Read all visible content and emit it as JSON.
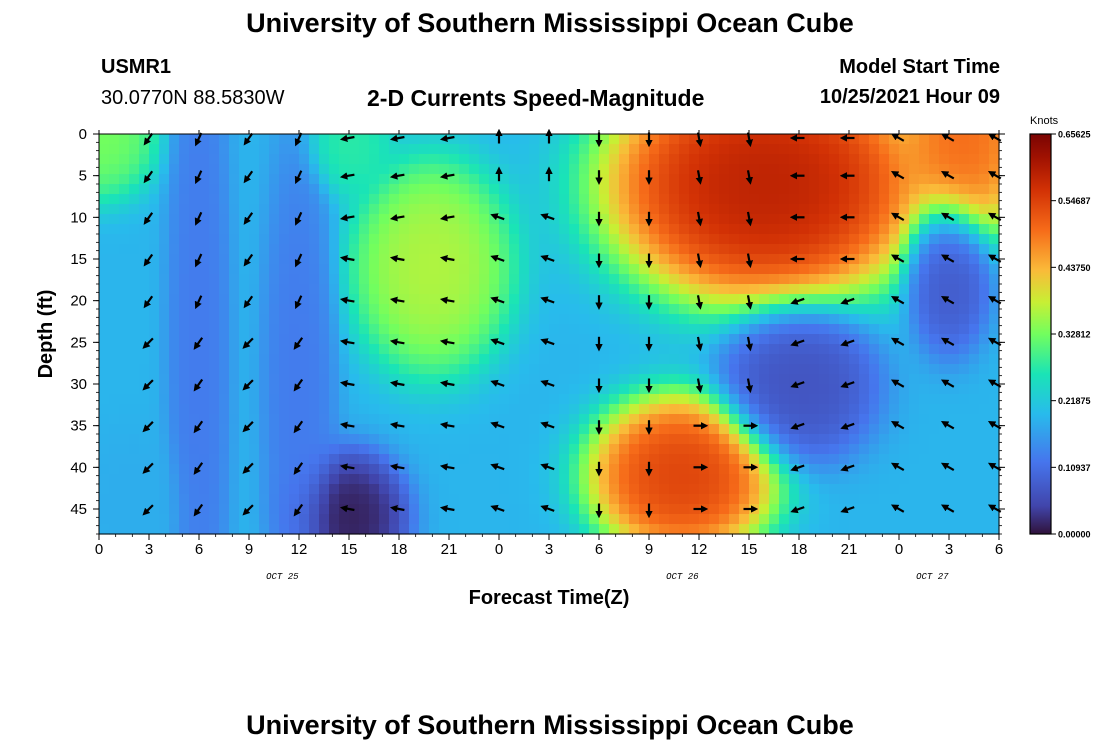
{
  "header": {
    "title": "University of Southern Mississippi Ocean Cube",
    "station": "USMR1",
    "location": "30.0770N  88.5830W",
    "subtitle": "2-D Currents Speed-Magnitude",
    "start_label": "Model Start Time",
    "start_value": "10/25/2021 Hour 09"
  },
  "footer": {
    "title": "University of Southern Mississippi Ocean Cube"
  },
  "chart_data": {
    "type": "heatmap",
    "title": "2-D Currents Speed-Magnitude",
    "xlabel": "Forecast Time(Z)",
    "ylabel": "Depth (ft)",
    "x_range_hours": [
      0,
      54
    ],
    "y_range_ft": [
      0,
      48
    ],
    "x_ticks": [
      {
        "h": 0,
        "label": "0"
      },
      {
        "h": 3,
        "label": "3"
      },
      {
        "h": 6,
        "label": "6"
      },
      {
        "h": 9,
        "label": "9"
      },
      {
        "h": 12,
        "label": "12"
      },
      {
        "h": 15,
        "label": "15"
      },
      {
        "h": 18,
        "label": "18"
      },
      {
        "h": 21,
        "label": "21"
      },
      {
        "h": 24,
        "label": "0"
      },
      {
        "h": 27,
        "label": "3"
      },
      {
        "h": 30,
        "label": "6"
      },
      {
        "h": 33,
        "label": "9"
      },
      {
        "h": 36,
        "label": "12"
      },
      {
        "h": 39,
        "label": "15"
      },
      {
        "h": 42,
        "label": "18"
      },
      {
        "h": 45,
        "label": "21"
      },
      {
        "h": 48,
        "label": "0"
      },
      {
        "h": 51,
        "label": "3"
      },
      {
        "h": 54,
        "label": "6"
      }
    ],
    "y_ticks": [
      0,
      5,
      10,
      15,
      20,
      25,
      30,
      35,
      40,
      45
    ],
    "date_labels": [
      {
        "h": 11,
        "label": "OCT 25"
      },
      {
        "h": 35,
        "label": "OCT 26"
      },
      {
        "h": 50,
        "label": "OCT 27"
      }
    ],
    "colorbar": {
      "unit": "Knots",
      "range": [
        0,
        0.65625
      ],
      "labels": [
        "0.65625",
        "0.54687",
        "0.43750",
        "0.32812",
        "0.21875",
        "0.10937",
        "0.00000"
      ]
    },
    "speed_features": [
      {
        "hour": 52,
        "depth": 0,
        "speed": 0.52,
        "spread_h": 2.4,
        "spread_d": 8
      },
      {
        "hour": 0,
        "depth": 0,
        "speed": 0.34,
        "spread_h": 2.2,
        "spread_d": 5
      },
      {
        "hour": 15,
        "depth": 1,
        "speed": 0.28,
        "spread_h": 1.6,
        "spread_d": 4
      },
      {
        "hour": 15,
        "depth": 46,
        "speed": 0.0,
        "spread_h": 2.2,
        "spread_d": 5
      },
      {
        "hour": 20,
        "depth": 16,
        "speed": 0.38,
        "spread_h": 3.0,
        "spread_d": 8
      },
      {
        "hour": 35,
        "depth": 41,
        "speed": 0.57,
        "spread_h": 3.5,
        "spread_d": 6
      },
      {
        "hour": 40,
        "depth": 6,
        "speed": 0.62,
        "spread_h": 6.0,
        "spread_d": 9
      },
      {
        "hour": 42,
        "depth": 30,
        "speed": 0.06,
        "spread_h": 3.0,
        "spread_d": 6
      },
      {
        "hour": 51,
        "depth": 17,
        "speed": 0.07,
        "spread_h": 1.6,
        "spread_d": 6
      },
      {
        "hour": 6,
        "depth": 25,
        "speed": 0.12,
        "spread_h": 1.2,
        "spread_d": 30
      },
      {
        "hour": 12,
        "depth": 30,
        "speed": 0.12,
        "spread_h": 1.4,
        "spread_d": 20
      },
      {
        "hour": 2,
        "depth": 45,
        "speed": 0.18,
        "spread_h": 2.0,
        "spread_d": 6
      }
    ],
    "arrows_columns_hours": [
      3,
      6,
      9,
      12,
      15,
      18,
      21,
      24,
      27,
      30,
      33,
      36,
      39,
      42,
      45,
      48,
      51,
      54
    ],
    "arrows_depths_ft": [
      0,
      5,
      10,
      15,
      20,
      25,
      30,
      35,
      40,
      45
    ]
  }
}
